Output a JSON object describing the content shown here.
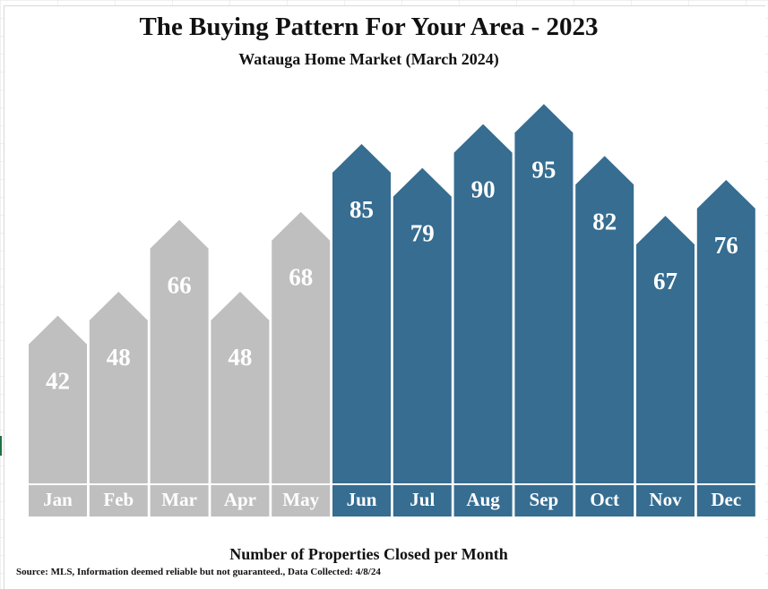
{
  "chart_data": {
    "type": "bar",
    "title": "The Buying Pattern For Your Area - 2023",
    "subtitle": "Watauga Home Market (March 2024)",
    "xlabel": "Number of Properties Closed per Month",
    "source": "Source: MLS, Information deemed reliable but not guaranteed., Data Collected: 4/8/24",
    "categories": [
      "Jan",
      "Feb",
      "Mar",
      "Apr",
      "May",
      "Jun",
      "Jul",
      "Aug",
      "Sep",
      "Oct",
      "Nov",
      "Dec"
    ],
    "values": [
      42,
      48,
      66,
      48,
      68,
      85,
      79,
      90,
      95,
      82,
      67,
      76
    ],
    "value_labels": [
      "42",
      "48",
      "66",
      "48",
      "68",
      "85",
      "79",
      "90",
      "95",
      "82",
      "67",
      "76"
    ],
    "colors": {
      "low_season": "#bfbfbf",
      "high_season": "#366d91",
      "text": "#ffffff"
    },
    "high_season_start_index": 5,
    "grid": false
  }
}
